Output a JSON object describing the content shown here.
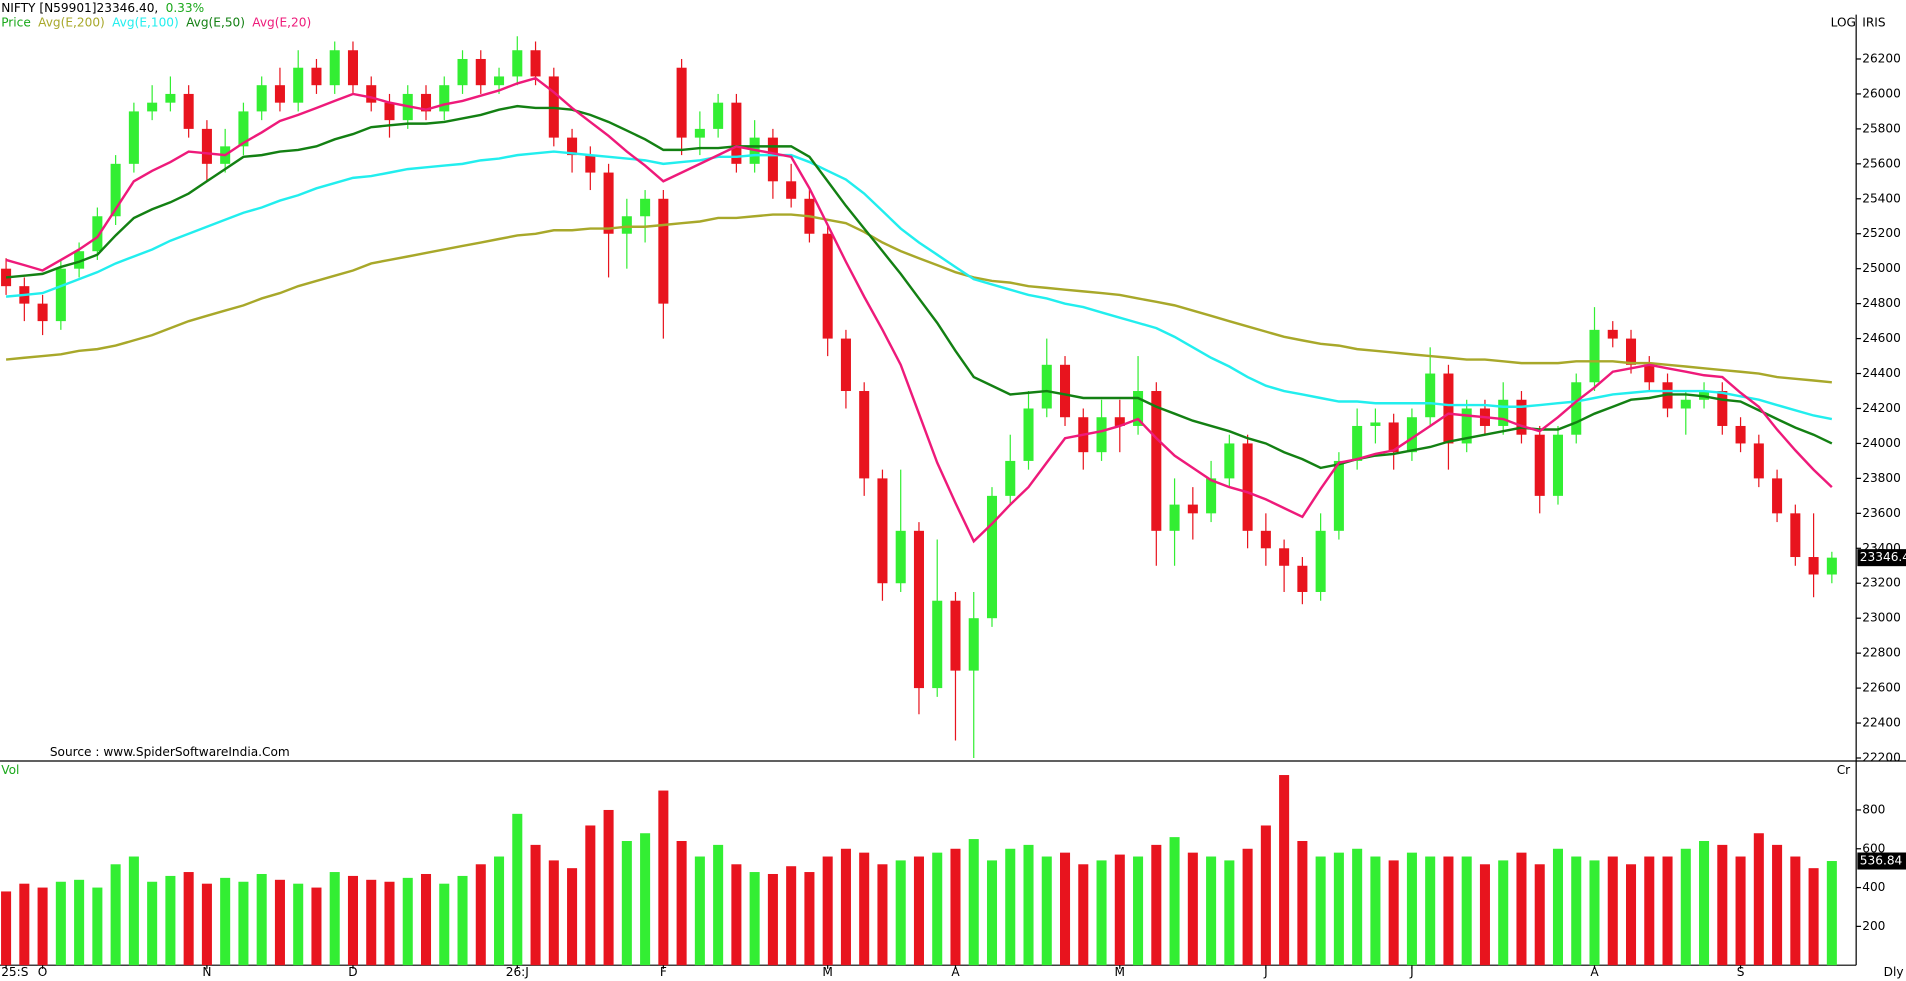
{
  "header": {
    "symbol": "NIFTY [N59901]23346.40,",
    "change": "0.33%",
    "price_label": "Price",
    "log": "LOG",
    "iris": "IRIS",
    "source": "Source : www.SpiderSoftwareIndia.Com",
    "period": "Dly"
  },
  "chart_data": {
    "type": "candlestick",
    "up_color": "#33ee33",
    "down_color": "#e8141e",
    "change_color": "#1aa81a",
    "categories": [
      "25:S",
      null,
      "O",
      null,
      null,
      null,
      null,
      null,
      null,
      null,
      null,
      "N",
      null,
      null,
      null,
      null,
      null,
      null,
      null,
      "D",
      null,
      null,
      null,
      null,
      null,
      null,
      null,
      null,
      "26:J",
      null,
      null,
      null,
      null,
      null,
      null,
      null,
      "F",
      null,
      null,
      null,
      null,
      null,
      null,
      null,
      null,
      "M",
      null,
      null,
      null,
      null,
      null,
      null,
      "A",
      null,
      null,
      null,
      null,
      null,
      null,
      null,
      null,
      "M",
      null,
      null,
      null,
      null,
      null,
      null,
      null,
      "J",
      null,
      null,
      null,
      null,
      null,
      null,
      null,
      "J",
      null,
      null,
      null,
      null,
      null,
      null,
      null,
      null,
      null,
      "A",
      null,
      null,
      null,
      null,
      null,
      null,
      null,
      "S",
      null,
      null,
      null,
      null,
      null
    ],
    "open": [
      25000,
      24900,
      24800,
      24700,
      25000,
      25100,
      25300,
      25600,
      25900,
      25950,
      26000,
      25800,
      25600,
      25700,
      25900,
      26050,
      25950,
      26150,
      26050,
      26250,
      26050,
      25950,
      25850,
      26000,
      25900,
      26050,
      26200,
      26050,
      26100,
      26250,
      26100,
      25750,
      25650,
      25550,
      25200,
      25300,
      25400,
      26150,
      25750,
      25800,
      25950,
      25600,
      25750,
      25500,
      25400,
      25200,
      24600,
      24300,
      23800,
      23200,
      23500,
      22600,
      23100,
      22700,
      23000,
      23700,
      23900,
      24200,
      24450,
      24150,
      23950,
      24150,
      24100,
      24300,
      23500,
      23650,
      23600,
      23800,
      24000,
      23500,
      23400,
      23300,
      23150,
      23500,
      23900,
      24100,
      24120,
      23950,
      24150,
      24400,
      24000,
      24200,
      24100,
      24250,
      24050,
      23700,
      24050,
      24350,
      24650,
      24600,
      24450,
      24350,
      24200,
      24250,
      24300,
      24100,
      24000,
      23800,
      23600,
      23350,
      23250
    ],
    "high": [
      25060,
      24950,
      24850,
      25050,
      25150,
      25350,
      25650,
      25950,
      26050,
      26100,
      26050,
      25850,
      25800,
      25950,
      26100,
      26150,
      26250,
      26200,
      26300,
      26300,
      26100,
      26000,
      26050,
      26050,
      26100,
      26250,
      26250,
      26150,
      26330,
      26300,
      26150,
      25800,
      25700,
      25600,
      25400,
      25450,
      25450,
      26200,
      25900,
      26000,
      26000,
      25850,
      25800,
      25600,
      25450,
      25250,
      24650,
      24350,
      23850,
      23850,
      23550,
      23450,
      23150,
      23150,
      23750,
      24050,
      24300,
      24600,
      24500,
      24200,
      24250,
      24250,
      24500,
      24350,
      23800,
      23750,
      23900,
      24050,
      24050,
      23600,
      23450,
      23350,
      23600,
      23950,
      24200,
      24200,
      24170,
      24200,
      24550,
      24450,
      24250,
      24250,
      24350,
      24300,
      24100,
      24100,
      24400,
      24780,
      24700,
      24650,
      24500,
      24400,
      24300,
      24350,
      24350,
      24150,
      24050,
      23850,
      23650,
      23600,
      23380
    ],
    "low": [
      24850,
      24700,
      24620,
      24650,
      24950,
      25050,
      25250,
      25550,
      25850,
      25900,
      25750,
      25500,
      25550,
      25650,
      25850,
      25900,
      25900,
      26000,
      26000,
      26000,
      25900,
      25750,
      25800,
      25850,
      25850,
      26000,
      26000,
      26000,
      26050,
      26050,
      25700,
      25550,
      25450,
      24950,
      25000,
      25150,
      24600,
      25650,
      25650,
      25750,
      25550,
      25550,
      25400,
      25350,
      25150,
      24500,
      24200,
      23700,
      23100,
      23150,
      22450,
      22550,
      22300,
      22200,
      22950,
      23650,
      23850,
      24150,
      24100,
      23850,
      23900,
      23950,
      24050,
      23300,
      23300,
      23450,
      23550,
      23750,
      23400,
      23300,
      23150,
      23080,
      23100,
      23450,
      23850,
      24000,
      23850,
      23900,
      24100,
      23850,
      23950,
      24050,
      24050,
      24000,
      23600,
      23650,
      24000,
      24300,
      24550,
      24400,
      24300,
      24150,
      24050,
      24200,
      24050,
      23950,
      23750,
      23550,
      23300,
      23120,
      23200
    ],
    "close": [
      24900,
      24800,
      24700,
      25000,
      25100,
      25300,
      25600,
      25900,
      25950,
      26000,
      25800,
      25600,
      25700,
      25900,
      26050,
      25950,
      26150,
      26050,
      26250,
      26050,
      25950,
      25850,
      26000,
      25900,
      26050,
      26200,
      26050,
      26100,
      26250,
      26100,
      25750,
      25650,
      25550,
      25200,
      25300,
      25400,
      24800,
      25750,
      25800,
      25950,
      25600,
      25750,
      25500,
      25400,
      25200,
      24600,
      24300,
      23800,
      23200,
      23500,
      22600,
      23100,
      22700,
      23000,
      23700,
      23900,
      24200,
      24450,
      24150,
      23950,
      24150,
      24100,
      24300,
      23500,
      23650,
      23600,
      23800,
      24000,
      23500,
      23400,
      23300,
      23150,
      23500,
      23900,
      24100,
      24120,
      23950,
      24150,
      24400,
      24000,
      24200,
      24100,
      24250,
      24050,
      23700,
      24050,
      24350,
      24650,
      24600,
      24450,
      24350,
      24200,
      24250,
      24300,
      24100,
      24000,
      23800,
      23600,
      23350,
      23250,
      23346.4
    ],
    "series": [
      {
        "name": "Avg(E,200)",
        "color": "#a8a82a",
        "values": [
          24480,
          24490,
          24500,
          24510,
          24530,
          24540,
          24560,
          24590,
          24620,
          24660,
          24700,
          24730,
          24760,
          24790,
          24830,
          24860,
          24900,
          24930,
          24960,
          24990,
          25030,
          25050,
          25070,
          25090,
          25110,
          25130,
          25150,
          25170,
          25190,
          25200,
          25220,
          25220,
          25230,
          25230,
          25240,
          25240,
          25250,
          25260,
          25270,
          25290,
          25290,
          25300,
          25310,
          25310,
          25300,
          25280,
          25260,
          25210,
          25150,
          25100,
          25060,
          25020,
          24980,
          24950,
          24930,
          24920,
          24900,
          24890,
          24880,
          24870,
          24860,
          24850,
          24830,
          24810,
          24790,
          24760,
          24730,
          24700,
          24670,
          24640,
          24610,
          24590,
          24570,
          24560,
          24540,
          24530,
          24520,
          24510,
          24500,
          24490,
          24480,
          24480,
          24470,
          24460,
          24460,
          24460,
          24470,
          24470,
          24470,
          24460,
          24460,
          24450,
          24440,
          24430,
          24420,
          24410,
          24400,
          24380,
          24370,
          24360,
          24350
        ]
      },
      {
        "name": "Avg(E,100)",
        "color": "#22eeee",
        "values": [
          24840,
          24850,
          24860,
          24900,
          24940,
          24980,
          25030,
          25070,
          25110,
          25160,
          25200,
          25240,
          25280,
          25320,
          25350,
          25390,
          25420,
          25460,
          25490,
          25520,
          25530,
          25550,
          25570,
          25580,
          25590,
          25600,
          25620,
          25630,
          25650,
          25660,
          25670,
          25660,
          25650,
          25640,
          25630,
          25620,
          25600,
          25610,
          25620,
          25640,
          25640,
          25650,
          25650,
          25650,
          25610,
          25560,
          25510,
          25430,
          25330,
          25230,
          25150,
          25080,
          25010,
          24940,
          24910,
          24880,
          24850,
          24830,
          24800,
          24780,
          24750,
          24720,
          24690,
          24660,
          24610,
          24550,
          24490,
          24440,
          24380,
          24330,
          24300,
          24280,
          24260,
          24240,
          24240,
          24230,
          24230,
          24230,
          24230,
          24220,
          24220,
          24220,
          24210,
          24210,
          24220,
          24230,
          24240,
          24260,
          24280,
          24290,
          24300,
          24300,
          24300,
          24300,
          24290,
          24270,
          24250,
          24220,
          24190,
          24160,
          24140
        ]
      },
      {
        "name": "Avg(E,50)",
        "color": "#138013",
        "values": [
          24950,
          24960,
          24970,
          25010,
          25040,
          25080,
          25190,
          25290,
          25340,
          25380,
          25430,
          25500,
          25570,
          25640,
          25650,
          25670,
          25680,
          25700,
          25740,
          25770,
          25810,
          25820,
          25830,
          25830,
          25840,
          25860,
          25880,
          25910,
          25930,
          25920,
          25920,
          25910,
          25880,
          25840,
          25790,
          25740,
          25680,
          25680,
          25690,
          25690,
          25700,
          25700,
          25700,
          25700,
          25640,
          25500,
          25360,
          25230,
          25100,
          24970,
          24830,
          24690,
          24530,
          24380,
          24330,
          24280,
          24290,
          24300,
          24280,
          24260,
          24260,
          24260,
          24260,
          24210,
          24170,
          24130,
          24100,
          24070,
          24030,
          24000,
          23950,
          23910,
          23860,
          23880,
          23910,
          23930,
          23940,
          23960,
          23980,
          24010,
          24030,
          24050,
          24070,
          24090,
          24080,
          24080,
          24120,
          24170,
          24210,
          24250,
          24260,
          24280,
          24280,
          24270,
          24250,
          24240,
          24190,
          24140,
          24090,
          24050,
          24000
        ]
      },
      {
        "name": "Avg(E,20)",
        "color": "#ee1a7a",
        "values": [
          25050,
          25020,
          24990,
          25050,
          25110,
          25180,
          25340,
          25500,
          25560,
          25610,
          25670,
          25660,
          25650,
          25720,
          25780,
          25845,
          25880,
          25920,
          25960,
          26000,
          25980,
          25950,
          25930,
          25910,
          25940,
          25960,
          25990,
          26020,
          26060,
          26090,
          26010,
          25920,
          25840,
          25760,
          25670,
          25590,
          25500,
          25550,
          25600,
          25650,
          25700,
          25680,
          25660,
          25640,
          25460,
          25250,
          25040,
          24840,
          24650,
          24450,
          24170,
          23890,
          23660,
          23440,
          23540,
          23650,
          23750,
          23890,
          24030,
          24050,
          24070,
          24100,
          24140,
          24030,
          23930,
          23860,
          23790,
          23750,
          23720,
          23680,
          23630,
          23580,
          23740,
          23890,
          23910,
          23940,
          23960,
          24030,
          24100,
          24170,
          24160,
          24150,
          24140,
          24100,
          24070,
          24150,
          24240,
          24320,
          24410,
          24430,
          24450,
          24430,
          24410,
          24390,
          24380,
          24290,
          24210,
          24080,
          23960,
          23850,
          23750
        ]
      }
    ],
    "ylim": [
      22190,
      26440
    ],
    "yticks": [
      22200,
      22400,
      22600,
      22800,
      23000,
      23200,
      23400,
      23600,
      23800,
      24000,
      24200,
      24400,
      24600,
      24800,
      25000,
      25200,
      25400,
      25600,
      25800,
      26000,
      26200
    ],
    "volume": {
      "label": "Vol",
      "unit": "Cr",
      "ylim": [
        0,
        1040
      ],
      "yticks": [
        200,
        400,
        600,
        800
      ],
      "values": [
        380,
        420,
        400,
        430,
        440,
        400,
        520,
        560,
        430,
        460,
        480,
        420,
        450,
        430,
        470,
        440,
        420,
        400,
        480,
        460,
        440,
        430,
        450,
        470,
        420,
        460,
        520,
        560,
        780,
        620,
        540,
        500,
        720,
        800,
        640,
        680,
        900,
        640,
        560,
        620,
        520,
        480,
        470,
        510,
        480,
        560,
        600,
        580,
        520,
        540,
        560,
        580,
        600,
        650,
        540,
        600,
        620,
        560,
        580,
        520,
        540,
        570,
        560,
        620,
        660,
        580,
        560,
        540,
        600,
        720,
        980,
        640,
        560,
        580,
        600,
        560,
        540,
        580,
        560,
        560,
        560,
        520,
        540,
        580,
        520,
        600,
        560,
        540,
        560,
        520,
        560,
        560,
        600,
        640,
        620,
        560,
        680,
        620,
        560,
        500,
        536.84
      ]
    }
  }
}
